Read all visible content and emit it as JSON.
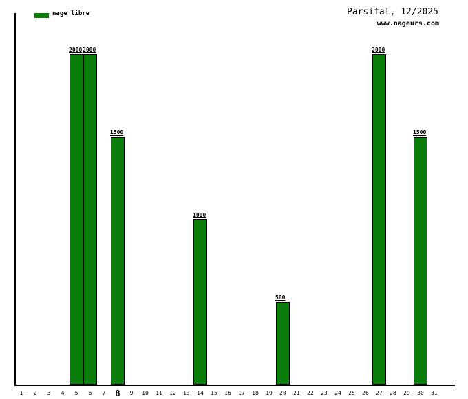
{
  "chart_data": {
    "type": "bar",
    "title": "Parsifal, 12/2025",
    "subtitle": "www.nageurs.com",
    "xlabel": "",
    "ylabel": "",
    "grid": false,
    "ylim": [
      0,
      2250
    ],
    "legend": {
      "position": "top-left",
      "entries": [
        {
          "label": "nage libre",
          "color": "#0a7c0a"
        }
      ]
    },
    "categories": [
      "1",
      "2",
      "3",
      "4",
      "5",
      "6",
      "7",
      "8",
      "9",
      "10",
      "11",
      "12",
      "13",
      "14",
      "15",
      "16",
      "17",
      "18",
      "19",
      "20",
      "21",
      "22",
      "23",
      "24",
      "25",
      "26",
      "27",
      "28",
      "29",
      "30",
      "31"
    ],
    "series": [
      {
        "name": "nage libre",
        "color": "#0a7c0a",
        "values": [
          0,
          0,
          0,
          0,
          2000,
          2000,
          0,
          1500,
          0,
          0,
          0,
          0,
          0,
          1000,
          0,
          0,
          0,
          0,
          0,
          500,
          0,
          0,
          0,
          0,
          0,
          0,
          2000,
          0,
          0,
          1500,
          0
        ]
      }
    ],
    "bar_value_labels": true,
    "highlighted_tick": "8",
    "axis_color": "#000000",
    "background_color": "#ffffff"
  }
}
